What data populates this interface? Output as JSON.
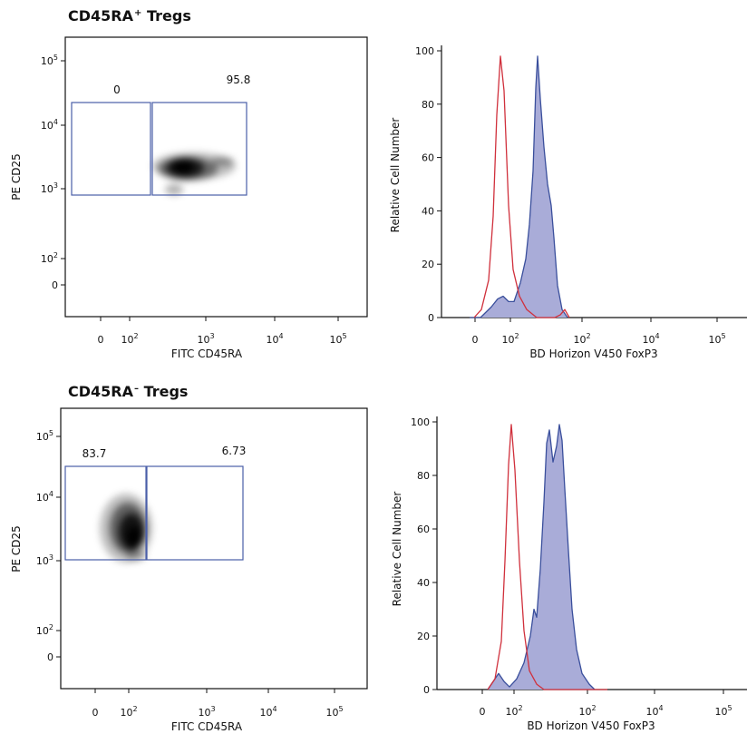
{
  "sections": [
    {
      "title_main": "CD45RA",
      "title_sup": "+",
      "title_tail": " Tregs"
    },
    {
      "title_main": "CD45RA",
      "title_sup": "–",
      "title_tail": " Tregs"
    }
  ],
  "chart_data": [
    {
      "type": "scatter",
      "subtype": "density-plot",
      "xlabel": "FITC CD45RA",
      "ylabel": "PE CD25",
      "x_ticks": [
        {
          "base": "0",
          "exp": ""
        },
        {
          "base": "10",
          "exp": "2"
        },
        {
          "base": "10",
          "exp": "3"
        },
        {
          "base": "10",
          "exp": "4"
        },
        {
          "base": "10",
          "exp": "5"
        }
      ],
      "y_ticks": [
        {
          "base": "0",
          "exp": ""
        },
        {
          "base": "10",
          "exp": "2"
        },
        {
          "base": "10",
          "exp": "3"
        },
        {
          "base": "10",
          "exp": "4"
        },
        {
          "base": "10",
          "exp": "5"
        }
      ],
      "gates": [
        {
          "label": "0"
        },
        {
          "label": "95.8"
        }
      ]
    },
    {
      "type": "area",
      "subtype": "histogram-overlay",
      "xlabel": "BD Horizon V450 FoxP3",
      "ylabel": "Relative Cell Number",
      "ylim": [
        0,
        100
      ],
      "y_ticks": [
        "0",
        "20",
        "40",
        "60",
        "80",
        "100"
      ],
      "x_ticks": [
        {
          "base": "0",
          "exp": ""
        },
        {
          "base": "10",
          "exp": "2"
        },
        {
          "base": "10",
          "exp": "2"
        },
        {
          "base": "10",
          "exp": "4"
        },
        {
          "base": "10",
          "exp": "5"
        }
      ],
      "series": [
        {
          "color": "#d0303c",
          "fill": "none",
          "peak": 98
        },
        {
          "color": "#3a4f9c",
          "fill": "#a9acd8",
          "peak": 98
        }
      ]
    },
    {
      "type": "scatter",
      "subtype": "density-plot",
      "xlabel": "FITC CD45RA",
      "ylabel": "PE CD25",
      "x_ticks": [
        {
          "base": "0",
          "exp": ""
        },
        {
          "base": "10",
          "exp": "2"
        },
        {
          "base": "10",
          "exp": "3"
        },
        {
          "base": "10",
          "exp": "4"
        },
        {
          "base": "10",
          "exp": "5"
        }
      ],
      "y_ticks": [
        {
          "base": "0",
          "exp": ""
        },
        {
          "base": "10",
          "exp": "2"
        },
        {
          "base": "10",
          "exp": "3"
        },
        {
          "base": "10",
          "exp": "4"
        },
        {
          "base": "10",
          "exp": "5"
        }
      ],
      "gates": [
        {
          "label": "83.7"
        },
        {
          "label": "6.73"
        }
      ]
    },
    {
      "type": "area",
      "subtype": "histogram-overlay",
      "xlabel": "BD Horizon V450 FoxP3",
      "ylabel": "Relative Cell Number",
      "ylim": [
        0,
        100
      ],
      "y_ticks": [
        "0",
        "20",
        "40",
        "60",
        "80",
        "100"
      ],
      "x_ticks": [
        {
          "base": "0",
          "exp": ""
        },
        {
          "base": "10",
          "exp": "2"
        },
        {
          "base": "10",
          "exp": "2"
        },
        {
          "base": "10",
          "exp": "4"
        },
        {
          "base": "10",
          "exp": "5"
        }
      ],
      "series": [
        {
          "color": "#d0303c",
          "fill": "none",
          "peak": 99
        },
        {
          "color": "#3a4f9c",
          "fill": "#a9acd8",
          "peak": 99
        }
      ]
    }
  ]
}
